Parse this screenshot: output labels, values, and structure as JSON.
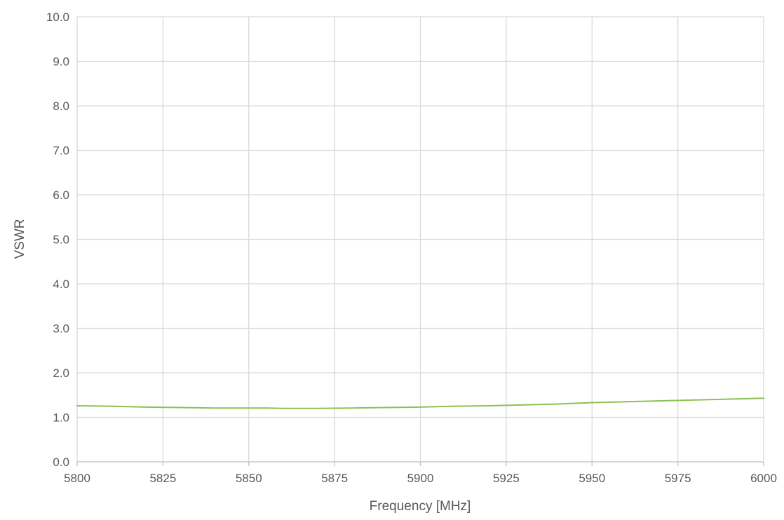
{
  "chart_data": {
    "type": "line",
    "title": "",
    "xlabel": "Frequency [MHz]",
    "ylabel": "VSWR",
    "xlim": [
      5800,
      6000
    ],
    "ylim": [
      0,
      10
    ],
    "x_ticks": [
      "5800",
      "5825",
      "5850",
      "5875",
      "5900",
      "5925",
      "5950",
      "5975",
      "6000"
    ],
    "y_ticks": [
      "0.0",
      "1.0",
      "2.0",
      "3.0",
      "4.0",
      "5.0",
      "6.0",
      "7.0",
      "8.0",
      "9.0",
      "10.0"
    ],
    "grid": true,
    "legend": "none",
    "series": [
      {
        "color": "#8cc152",
        "x": [
          5800,
          5810,
          5820,
          5830,
          5840,
          5850,
          5855,
          5860,
          5870,
          5880,
          5890,
          5900,
          5910,
          5920,
          5930,
          5940,
          5950,
          5960,
          5970,
          5980,
          5990,
          6000
        ],
        "y": [
          1.26,
          1.25,
          1.23,
          1.22,
          1.21,
          1.21,
          1.21,
          1.2,
          1.2,
          1.21,
          1.22,
          1.23,
          1.25,
          1.26,
          1.28,
          1.3,
          1.33,
          1.35,
          1.37,
          1.39,
          1.41,
          1.43
        ]
      }
    ]
  }
}
